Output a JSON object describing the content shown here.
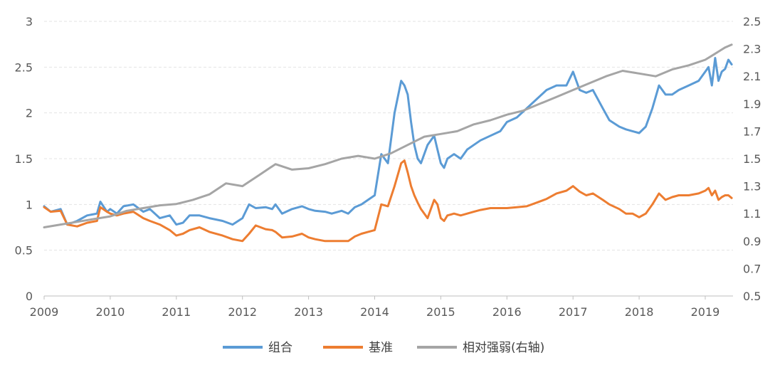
{
  "chart_data": {
    "type": "line",
    "title": "",
    "xlabel": "",
    "ylabel": "",
    "xlim": [
      2009.0,
      2019.42
    ],
    "ylim": [
      0,
      3
    ],
    "y2lim": [
      0.5,
      2.5
    ],
    "grid": true,
    "legend_position": "bottom",
    "x_tick_labels": [
      "2009",
      "2010",
      "2011",
      "2012",
      "2013",
      "2014",
      "2015",
      "2016",
      "2017",
      "2018",
      "2019"
    ],
    "y_tick_labels": [
      "0",
      "0.5",
      "1",
      "1.5",
      "2",
      "2.5",
      "3"
    ],
    "y2_tick_labels": [
      "0.5",
      "0.7",
      "0.9",
      "1.1",
      "1.3",
      "1.5",
      "1.7",
      "1.9",
      "2.1",
      "2.3",
      "2.5"
    ],
    "series": [
      {
        "name": "组合",
        "axis": "left",
        "color": "#5b9bd5",
        "x": [
          2009.0,
          2009.1,
          2009.25,
          2009.35,
          2009.5,
          2009.65,
          2009.8,
          2009.85,
          2009.95,
          2010.0,
          2010.1,
          2010.2,
          2010.35,
          2010.5,
          2010.6,
          2010.75,
          2010.9,
          2011.0,
          2011.1,
          2011.2,
          2011.35,
          2011.5,
          2011.7,
          2011.85,
          2012.0,
          2012.1,
          2012.2,
          2012.35,
          2012.45,
          2012.5,
          2012.6,
          2012.75,
          2012.9,
          2013.0,
          2013.1,
          2013.25,
          2013.35,
          2013.5,
          2013.6,
          2013.7,
          2013.8,
          2013.9,
          2014.0,
          2014.1,
          2014.2,
          2014.3,
          2014.4,
          2014.45,
          2014.5,
          2014.55,
          2014.6,
          2014.65,
          2014.7,
          2014.8,
          2014.9,
          2014.95,
          2015.0,
          2015.05,
          2015.1,
          2015.2,
          2015.3,
          2015.4,
          2015.5,
          2015.6,
          2015.75,
          2015.9,
          2016.0,
          2016.15,
          2016.3,
          2016.45,
          2016.6,
          2016.75,
          2016.9,
          2017.0,
          2017.1,
          2017.2,
          2017.3,
          2017.45,
          2017.55,
          2017.7,
          2017.8,
          2017.9,
          2018.0,
          2018.1,
          2018.2,
          2018.3,
          2018.4,
          2018.5,
          2018.6,
          2018.75,
          2018.9,
          2019.0,
          2019.05,
          2019.1,
          2019.15,
          2019.2,
          2019.25,
          2019.3,
          2019.35,
          2019.4
        ],
        "values": [
          0.98,
          0.92,
          0.95,
          0.78,
          0.82,
          0.88,
          0.9,
          1.03,
          0.92,
          0.95,
          0.9,
          0.98,
          1.0,
          0.92,
          0.95,
          0.85,
          0.88,
          0.78,
          0.8,
          0.88,
          0.88,
          0.85,
          0.82,
          0.78,
          0.85,
          1.0,
          0.96,
          0.97,
          0.95,
          1.0,
          0.9,
          0.95,
          0.98,
          0.95,
          0.93,
          0.92,
          0.9,
          0.93,
          0.9,
          0.97,
          1.0,
          1.05,
          1.1,
          1.55,
          1.45,
          2.0,
          2.35,
          2.3,
          2.2,
          1.9,
          1.65,
          1.5,
          1.45,
          1.65,
          1.75,
          1.6,
          1.45,
          1.4,
          1.5,
          1.55,
          1.5,
          1.6,
          1.65,
          1.7,
          1.75,
          1.8,
          1.9,
          1.95,
          2.05,
          2.15,
          2.25,
          2.3,
          2.3,
          2.45,
          2.25,
          2.22,
          2.25,
          2.05,
          1.92,
          1.85,
          1.82,
          1.8,
          1.78,
          1.85,
          2.05,
          2.3,
          2.2,
          2.2,
          2.25,
          2.3,
          2.35,
          2.45,
          2.5,
          2.3,
          2.6,
          2.35,
          2.45,
          2.48,
          2.58,
          2.53
        ]
      },
      {
        "name": "基准",
        "axis": "left",
        "color": "#ed7d31",
        "x": [
          2009.0,
          2009.1,
          2009.25,
          2009.35,
          2009.5,
          2009.65,
          2009.8,
          2009.85,
          2009.95,
          2010.0,
          2010.1,
          2010.2,
          2010.35,
          2010.5,
          2010.6,
          2010.75,
          2010.9,
          2011.0,
          2011.1,
          2011.2,
          2011.35,
          2011.5,
          2011.7,
          2011.85,
          2012.0,
          2012.1,
          2012.2,
          2012.35,
          2012.45,
          2012.5,
          2012.6,
          2012.75,
          2012.9,
          2013.0,
          2013.1,
          2013.25,
          2013.35,
          2013.5,
          2013.6,
          2013.7,
          2013.8,
          2013.9,
          2014.0,
          2014.1,
          2014.2,
          2014.3,
          2014.4,
          2014.45,
          2014.5,
          2014.55,
          2014.6,
          2014.65,
          2014.7,
          2014.8,
          2014.9,
          2014.95,
          2015.0,
          2015.05,
          2015.1,
          2015.2,
          2015.3,
          2015.4,
          2015.5,
          2015.6,
          2015.75,
          2015.9,
          2016.0,
          2016.15,
          2016.3,
          2016.45,
          2016.6,
          2016.75,
          2016.9,
          2017.0,
          2017.1,
          2017.2,
          2017.3,
          2017.45,
          2017.55,
          2017.7,
          2017.8,
          2017.9,
          2018.0,
          2018.1,
          2018.2,
          2018.3,
          2018.4,
          2018.5,
          2018.6,
          2018.75,
          2018.9,
          2019.0,
          2019.05,
          2019.1,
          2019.15,
          2019.2,
          2019.25,
          2019.3,
          2019.35,
          2019.4
        ],
        "values": [
          0.97,
          0.92,
          0.93,
          0.78,
          0.76,
          0.8,
          0.82,
          0.97,
          0.92,
          0.9,
          0.88,
          0.9,
          0.92,
          0.85,
          0.82,
          0.78,
          0.72,
          0.66,
          0.68,
          0.72,
          0.75,
          0.7,
          0.66,
          0.62,
          0.6,
          0.68,
          0.77,
          0.73,
          0.72,
          0.7,
          0.64,
          0.65,
          0.68,
          0.64,
          0.62,
          0.6,
          0.6,
          0.6,
          0.6,
          0.65,
          0.68,
          0.7,
          0.72,
          1.0,
          0.98,
          1.2,
          1.45,
          1.48,
          1.35,
          1.2,
          1.1,
          1.02,
          0.95,
          0.85,
          1.05,
          1.0,
          0.85,
          0.82,
          0.88,
          0.9,
          0.88,
          0.9,
          0.92,
          0.94,
          0.96,
          0.96,
          0.96,
          0.97,
          0.98,
          1.02,
          1.06,
          1.12,
          1.15,
          1.2,
          1.14,
          1.1,
          1.12,
          1.05,
          1.0,
          0.95,
          0.9,
          0.9,
          0.86,
          0.9,
          1.0,
          1.12,
          1.05,
          1.08,
          1.1,
          1.1,
          1.12,
          1.15,
          1.18,
          1.1,
          1.15,
          1.05,
          1.08,
          1.1,
          1.1,
          1.07
        ]
      },
      {
        "name": "相对强弱(右轴)",
        "axis": "right",
        "color": "#a5a5a5",
        "x": [
          2009.0,
          2009.25,
          2009.5,
          2009.75,
          2010.0,
          2010.25,
          2010.5,
          2010.75,
          2011.0,
          2011.25,
          2011.5,
          2011.75,
          2012.0,
          2012.25,
          2012.5,
          2012.75,
          2013.0,
          2013.25,
          2013.5,
          2013.75,
          2014.0,
          2014.25,
          2014.5,
          2014.75,
          2015.0,
          2015.25,
          2015.5,
          2015.75,
          2016.0,
          2016.25,
          2016.5,
          2016.75,
          2017.0,
          2017.25,
          2017.5,
          2017.75,
          2018.0,
          2018.25,
          2018.5,
          2018.75,
          2019.0,
          2019.1,
          2019.2,
          2019.3,
          2019.4
        ],
        "values": [
          1.0,
          1.02,
          1.04,
          1.06,
          1.08,
          1.12,
          1.14,
          1.16,
          1.17,
          1.2,
          1.24,
          1.32,
          1.3,
          1.38,
          1.46,
          1.42,
          1.43,
          1.46,
          1.5,
          1.52,
          1.5,
          1.54,
          1.6,
          1.66,
          1.68,
          1.7,
          1.75,
          1.78,
          1.82,
          1.85,
          1.9,
          1.95,
          2.0,
          2.05,
          2.1,
          2.14,
          2.12,
          2.1,
          2.15,
          2.18,
          2.22,
          2.25,
          2.28,
          2.31,
          2.33
        ]
      }
    ]
  }
}
